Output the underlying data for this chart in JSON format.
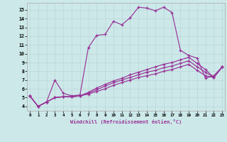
{
  "xlabel": "Windchill (Refroidissement éolien,°C)",
  "bg_color": "#cce8e8",
  "line_color": "#993399",
  "grid_color": "#b8d8d8",
  "ylim": [
    3.5,
    15.8
  ],
  "xlim": [
    -0.3,
    23.3
  ],
  "yticks": [
    4,
    5,
    6,
    7,
    8,
    9,
    10,
    11,
    12,
    13,
    14,
    15
  ],
  "xticks": [
    0,
    1,
    2,
    3,
    4,
    5,
    6,
    7,
    8,
    9,
    10,
    11,
    12,
    13,
    14,
    15,
    16,
    17,
    18,
    19,
    20,
    21,
    22,
    23
  ],
  "series": [
    [
      5.2,
      4.0,
      4.5,
      7.0,
      5.5,
      5.2,
      5.3,
      10.7,
      12.1,
      12.2,
      13.7,
      13.3,
      14.1,
      15.3,
      15.2,
      14.9,
      15.3,
      14.7,
      10.4,
      9.8,
      9.5,
      7.2,
      7.5,
      8.5
    ],
    [
      5.2,
      4.0,
      4.5,
      5.0,
      5.1,
      5.1,
      5.2,
      5.4,
      5.7,
      6.0,
      6.4,
      6.7,
      7.0,
      7.3,
      7.5,
      7.7,
      8.0,
      8.2,
      8.5,
      8.8,
      8.1,
      7.5,
      7.3,
      8.5
    ],
    [
      5.2,
      4.0,
      4.5,
      5.0,
      5.1,
      5.1,
      5.2,
      5.6,
      6.1,
      6.5,
      6.9,
      7.2,
      7.6,
      7.9,
      8.2,
      8.5,
      8.8,
      9.0,
      9.3,
      9.6,
      8.9,
      8.2,
      7.3,
      8.5
    ],
    [
      5.2,
      4.0,
      4.5,
      5.0,
      5.1,
      5.1,
      5.2,
      5.5,
      5.9,
      6.3,
      6.7,
      7.0,
      7.3,
      7.6,
      7.9,
      8.1,
      8.4,
      8.6,
      8.9,
      9.2,
      8.5,
      7.9,
      7.3,
      8.5
    ]
  ]
}
